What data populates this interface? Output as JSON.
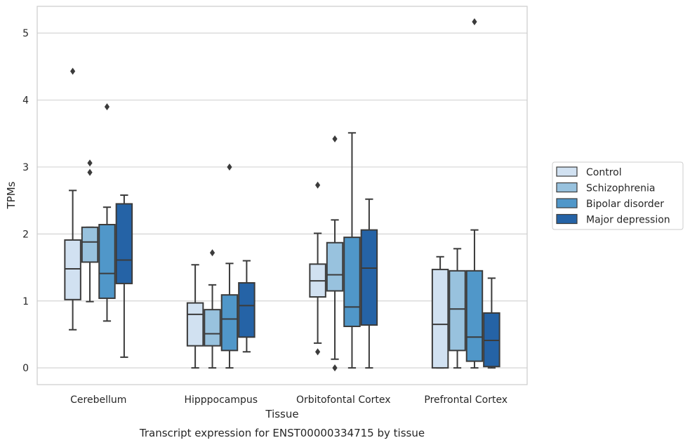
{
  "chart_data": {
    "type": "box",
    "xlabel": "Tissue",
    "ylabel": "TPMs",
    "caption": "Transcript expression for ENST00000334715 by tissue",
    "ylim": [
      -0.25,
      5.4
    ],
    "yticks": [
      "0",
      "1",
      "2",
      "3",
      "4",
      "5"
    ],
    "grid": "horizontal",
    "legend_position": "right",
    "categories": [
      "Cerebellum",
      "Hipppocampus",
      "Orbitofontal Cortex",
      "Prefrontal Cortex"
    ],
    "series": [
      {
        "name": "Control",
        "color": "#d1e1f1",
        "boxes": [
          {
            "whislo": 0.57,
            "q1": 1.02,
            "med": 1.48,
            "q3": 1.91,
            "whishi": 2.65,
            "fliers": [
              4.43
            ]
          },
          {
            "whislo": 0.0,
            "q1": 0.33,
            "med": 0.8,
            "q3": 0.97,
            "whishi": 1.54,
            "fliers": []
          },
          {
            "whislo": 0.37,
            "q1": 1.06,
            "med": 1.3,
            "q3": 1.55,
            "whishi": 2.01,
            "fliers": [
              2.73,
              0.24
            ]
          },
          {
            "whislo": 0.0,
            "q1": 0.0,
            "med": 0.65,
            "q3": 1.47,
            "whishi": 1.66,
            "fliers": []
          }
        ]
      },
      {
        "name": "Schizophrenia",
        "color": "#98c2de",
        "boxes": [
          {
            "whislo": 0.99,
            "q1": 1.58,
            "med": 1.88,
            "q3": 2.1,
            "whishi": 2.1,
            "fliers": [
              3.06,
              2.92
            ]
          },
          {
            "whislo": 0.0,
            "q1": 0.33,
            "med": 0.51,
            "q3": 0.87,
            "whishi": 1.24,
            "fliers": [
              1.72
            ]
          },
          {
            "whislo": 0.13,
            "q1": 1.15,
            "med": 1.39,
            "q3": 1.87,
            "whishi": 2.21,
            "fliers": [
              3.42,
              0.0
            ]
          },
          {
            "whislo": 0.0,
            "q1": 0.26,
            "med": 0.88,
            "q3": 1.45,
            "whishi": 1.78,
            "fliers": []
          }
        ]
      },
      {
        "name": "Bipolar disorder",
        "color": "#5097c9",
        "boxes": [
          {
            "whislo": 0.7,
            "q1": 1.04,
            "med": 1.41,
            "q3": 2.14,
            "whishi": 2.4,
            "fliers": [
              3.9
            ]
          },
          {
            "whislo": 0.0,
            "q1": 0.26,
            "med": 0.73,
            "q3": 1.09,
            "whishi": 1.56,
            "fliers": [
              3.0
            ]
          },
          {
            "whislo": 0.0,
            "q1": 0.62,
            "med": 0.91,
            "q3": 1.95,
            "whishi": 3.51,
            "fliers": []
          },
          {
            "whislo": 0.0,
            "q1": 0.1,
            "med": 0.46,
            "q3": 1.45,
            "whishi": 2.06,
            "fliers": [
              5.17
            ]
          }
        ]
      },
      {
        "name": "Major depression",
        "color": "#2563a6",
        "boxes": [
          {
            "whislo": 0.16,
            "q1": 1.26,
            "med": 1.61,
            "q3": 2.45,
            "whishi": 2.58,
            "fliers": []
          },
          {
            "whislo": 0.24,
            "q1": 0.46,
            "med": 0.93,
            "q3": 1.27,
            "whishi": 1.6,
            "fliers": []
          },
          {
            "whislo": 0.0,
            "q1": 0.64,
            "med": 1.49,
            "q3": 2.06,
            "whishi": 2.52,
            "fliers": []
          },
          {
            "whislo": 0.0,
            "q1": 0.02,
            "med": 0.41,
            "q3": 0.82,
            "whishi": 1.34,
            "fliers": []
          }
        ]
      }
    ]
  }
}
